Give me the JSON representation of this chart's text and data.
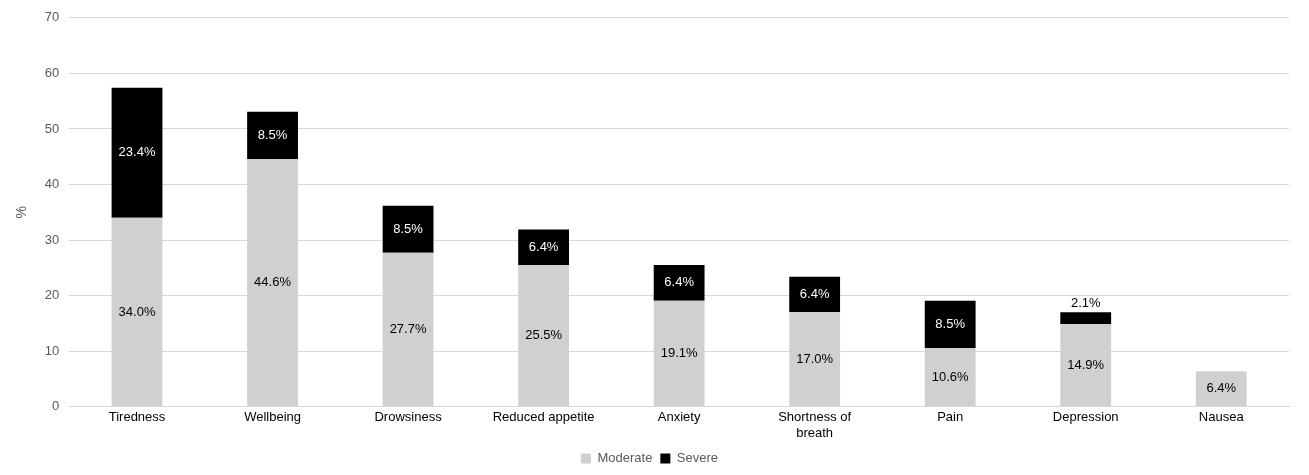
{
  "chart_data": {
    "type": "bar",
    "stacked": true,
    "ylabel": "%",
    "categories": [
      "Tiredness",
      "Wellbeing",
      "Drowsiness",
      "Reduced appetite",
      "Anxiety",
      "Shortness of breath",
      "Pain",
      "Depression",
      "Nausea"
    ],
    "series": [
      {
        "name": "Moderate",
        "color": "#d0d0d0",
        "values": [
          34.0,
          44.6,
          27.7,
          25.5,
          19.1,
          17.0,
          10.6,
          14.9,
          6.4
        ],
        "value_labels": [
          "34.0%",
          "44.6%",
          "27.7%",
          "25.5%",
          "19.1%",
          "17.0%",
          "10.6%",
          "14.9%",
          "6.4%"
        ]
      },
      {
        "name": "Severe",
        "color": "#000000",
        "values": [
          23.4,
          8.5,
          8.5,
          6.4,
          6.4,
          6.4,
          8.5,
          2.1,
          null
        ],
        "value_labels": [
          "23.4%",
          "8.5%",
          "8.5%",
          "6.4%",
          "6.4%",
          "6.4%",
          "8.5%",
          "2.1%",
          null
        ]
      }
    ],
    "ylim": [
      0,
      70
    ],
    "yticks": [
      0,
      10,
      20,
      30,
      40,
      50,
      60,
      70
    ],
    "grid": "y",
    "legend": "bottom"
  }
}
